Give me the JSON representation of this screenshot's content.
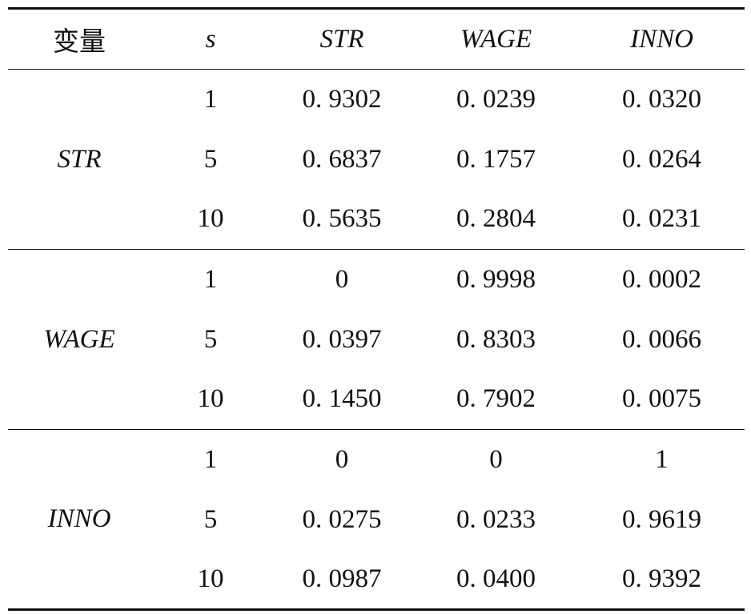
{
  "table": {
    "header": [
      "变量",
      "s",
      "STR",
      "WAGE",
      "INNO"
    ],
    "groups": [
      {
        "variable": "STR",
        "rows": [
          {
            "s": "1",
            "values": [
              "0. 9302",
              "0. 0239",
              "0. 0320"
            ]
          },
          {
            "s": "5",
            "values": [
              "0. 6837",
              "0. 1757",
              "0. 0264"
            ]
          },
          {
            "s": "10",
            "values": [
              "0. 5635",
              "0. 2804",
              "0. 0231"
            ]
          }
        ]
      },
      {
        "variable": "WAGE",
        "rows": [
          {
            "s": "1",
            "values": [
              "0",
              "0. 9998",
              "0. 0002"
            ]
          },
          {
            "s": "5",
            "values": [
              "0. 0397",
              "0. 8303",
              "0. 0066"
            ]
          },
          {
            "s": "10",
            "values": [
              "0. 1450",
              "0. 7902",
              "0. 0075"
            ]
          }
        ]
      },
      {
        "variable": "INNO",
        "rows": [
          {
            "s": "1",
            "values": [
              "0",
              "0",
              "1"
            ]
          },
          {
            "s": "5",
            "values": [
              "0. 0275",
              "0. 0233",
              "0. 9619"
            ]
          },
          {
            "s": "10",
            "values": [
              "0. 0987",
              "0. 0400",
              "0. 9392"
            ]
          }
        ]
      }
    ]
  }
}
